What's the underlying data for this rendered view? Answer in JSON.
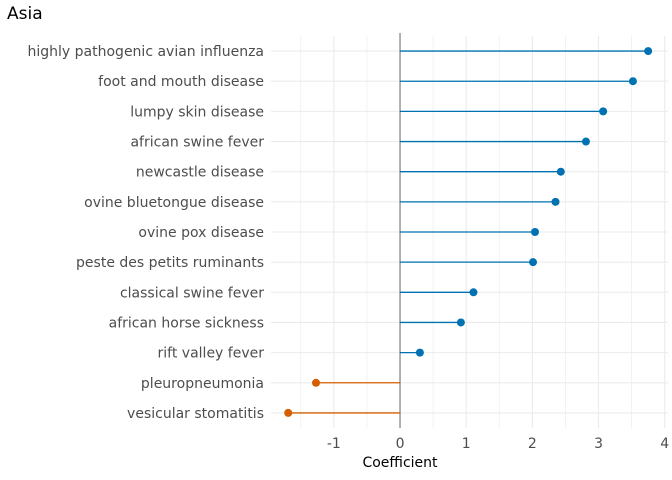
{
  "chart_data": {
    "type": "lollipop",
    "title": "Asia",
    "xlabel": "Coefficient",
    "ylabel": "",
    "xlim": [
      -1.95,
      4.05
    ],
    "xticks": [
      -1,
      0,
      1,
      2,
      3,
      4
    ],
    "grid": true,
    "colors": {
      "positive": "#0072B2",
      "negative": "#D55E00",
      "zero_line": "#7f7f7f",
      "grid": "#ebebeb"
    },
    "categories": [
      "highly pathogenic avian influenza",
      "foot and mouth disease",
      "lumpy skin disease",
      "african swine fever",
      "newcastle disease",
      "ovine bluetongue disease",
      "ovine pox disease",
      "peste des petits ruminants",
      "classical swine fever",
      "african horse sickness",
      "rift valley fever",
      "pleuropneumonia",
      "vesicular stomatitis"
    ],
    "values": [
      3.75,
      3.52,
      3.07,
      2.81,
      2.43,
      2.35,
      2.04,
      2.01,
      1.11,
      0.92,
      0.3,
      -1.27,
      -1.69
    ]
  }
}
